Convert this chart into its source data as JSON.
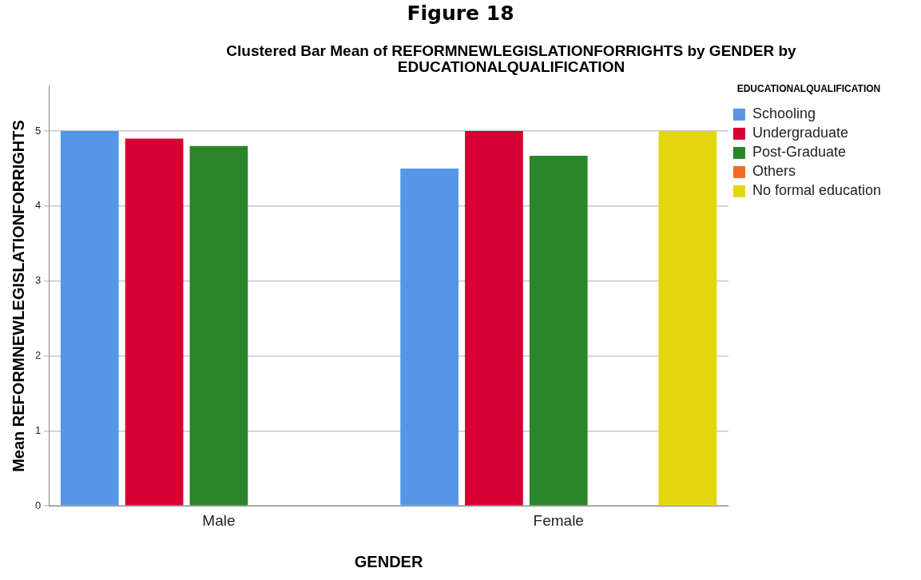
{
  "chart_data": {
    "type": "bar",
    "title": "Figure 18",
    "subtitle": "Clustered Bar Mean of REFORMNEWLEGISLATIONFORRIGHTS by GENDER by EDUCATIONALQUALIFICATION",
    "xlabel": "GENDER",
    "ylabel": "Mean REFORMNEWLEGISLATIONFORRIGHTS",
    "legend_title": "EDUCATIONALQUALIFICATION",
    "categories": [
      "Male",
      "Female"
    ],
    "series": [
      {
        "name": "Schooling",
        "color": "#5596e6",
        "values": [
          5.0,
          4.5
        ]
      },
      {
        "name": "Undergraduate",
        "color": "#d60032",
        "values": [
          4.9,
          5.0
        ]
      },
      {
        "name": "Post-Graduate",
        "color": "#2a8429",
        "values": [
          4.8,
          4.67
        ]
      },
      {
        "name": "Others",
        "color": "#f46a25",
        "values": [
          null,
          null
        ]
      },
      {
        "name": "No formal education",
        "color": "#e2d70f",
        "values": [
          null,
          5.0
        ]
      }
    ],
    "ylim": [
      0,
      5.6
    ],
    "yticks": [
      0,
      1,
      2,
      3,
      4,
      5
    ],
    "grid": "y",
    "legend": "top right"
  }
}
